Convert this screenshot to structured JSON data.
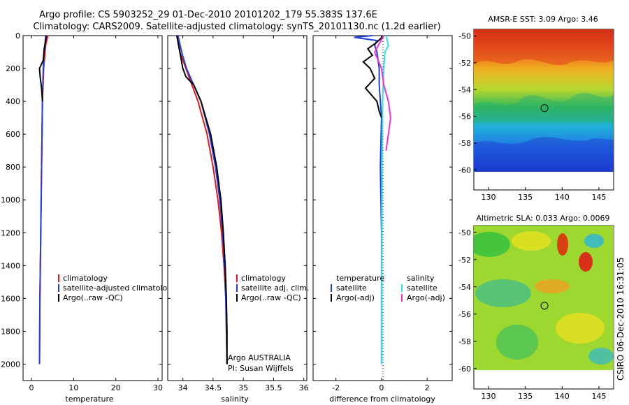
{
  "header": {
    "title_line1": "Argo profile: CS 5903252_29 01-Dec-2010 20101202_179 55.383S 137.6E",
    "title_line2": "Climatology: CARS2009. Satellite-adjusted climatology: synTS_20101130.nc (1.2d earlier)"
  },
  "stamp": "CSIRO 06-Dec-2010 16:31:05",
  "colors": {
    "climatology": "#e41a1c",
    "satellite": "#1f3fe0",
    "argo": "#000000",
    "sat_salinity": "#2ee0f0",
    "argo_adj_salinity": "#f030d0"
  },
  "chart_data": [
    {
      "type": "line",
      "name": "temperature-panel",
      "xlabel": "temperature",
      "ylabel": "",
      "xlim": [
        -2,
        31
      ],
      "ylim": [
        2100,
        0
      ],
      "xticks": [
        0,
        10,
        20,
        30
      ],
      "xtick_labels": [
        "0",
        "10",
        "20",
        "30"
      ],
      "yticks": [
        0,
        200,
        400,
        600,
        800,
        1000,
        1200,
        1400,
        1600,
        1800,
        2000
      ],
      "ytick_labels": [
        "0",
        "200",
        "400",
        "600",
        "800",
        "1000",
        "1200",
        "1400",
        "1600",
        "1800",
        "2000"
      ],
      "legend": [
        "climatology",
        "satellite-adjusted climatolo",
        "Argo(..raw -QC)"
      ],
      "series": [
        {
          "name": "climatology",
          "color": "#e41a1c",
          "y": [
            0,
            20,
            50,
            100,
            200,
            400,
            800,
            1200,
            1600,
            2000
          ],
          "x": [
            3.9,
            3.7,
            3.4,
            3.2,
            2.9,
            2.6,
            2.4,
            2.2,
            2.0,
            1.9
          ]
        },
        {
          "name": "satellite-adjusted climatology",
          "color": "#1f3fe0",
          "y": [
            0,
            20,
            50,
            100,
            200,
            400,
            800,
            1200,
            1600,
            2000
          ],
          "x": [
            3.4,
            3.3,
            3.2,
            3.0,
            2.8,
            2.6,
            2.4,
            2.2,
            2.0,
            1.9
          ]
        },
        {
          "name": "Argo(..raw -QC)",
          "color": "#000000",
          "y": [
            0,
            40,
            80,
            150,
            200,
            260,
            320,
            400
          ],
          "x": [
            3.5,
            3.3,
            3.0,
            2.8,
            1.9,
            2.1,
            2.4,
            2.6
          ]
        }
      ]
    },
    {
      "type": "line",
      "name": "salinity-panel",
      "xlabel": "salinity",
      "ylabel": "",
      "xlim": [
        33.75,
        36.05
      ],
      "ylim": [
        2100,
        0
      ],
      "xticks": [
        34,
        34.5,
        35,
        35.5,
        36
      ],
      "xtick_labels": [
        "34",
        "34.5",
        "35",
        "35.5",
        "36"
      ],
      "legend": [
        "climatology",
        "satellite adj. clim.",
        "Argo(..raw -QC)"
      ],
      "annotations": [
        "Argo AUSTRALIA",
        "PI: Susan Wijffels"
      ],
      "series": [
        {
          "name": "climatology",
          "color": "#e41a1c",
          "y": [
            0,
            100,
            200,
            300,
            400,
            600,
            800,
            1000,
            1200,
            1400,
            1600,
            2000
          ],
          "x": [
            33.9,
            33.95,
            34.05,
            34.15,
            34.25,
            34.4,
            34.5,
            34.58,
            34.64,
            34.68,
            34.71,
            34.73
          ]
        },
        {
          "name": "satellite adj. clim.",
          "color": "#1f3fe0",
          "y": [
            0,
            100,
            200,
            300,
            400,
            600,
            800,
            1000,
            1200,
            1400,
            1600,
            2000
          ],
          "x": [
            33.92,
            33.98,
            34.06,
            34.18,
            34.3,
            34.44,
            34.54,
            34.61,
            34.66,
            34.69,
            34.71,
            34.73
          ]
        },
        {
          "name": "Argo(..raw -QC)",
          "color": "#000000",
          "y": [
            0,
            100,
            200,
            250,
            300,
            400,
            600,
            800,
            1000,
            1200,
            1400,
            1600,
            1800,
            2000
          ],
          "x": [
            33.9,
            33.95,
            34.0,
            34.05,
            34.18,
            34.3,
            34.46,
            34.56,
            34.63,
            34.67,
            34.7,
            34.72,
            34.73,
            34.73
          ]
        }
      ]
    },
    {
      "type": "line",
      "name": "difference-panel",
      "xlabel": "difference from climatology",
      "ylabel": "",
      "xlim": [
        -3,
        3.1
      ],
      "ylim": [
        2100,
        0
      ],
      "xticks": [
        -2,
        0,
        2
      ],
      "xtick_labels": [
        "-2",
        "0",
        "2"
      ],
      "legend_headers": [
        "temperature",
        "salinity"
      ],
      "legend": [
        "satellite",
        "Argo(-adj)",
        "satellite",
        "Argo(-adj)"
      ],
      "series": [
        {
          "name": "temperature satellite",
          "color": "#1f3fe0",
          "y": [
            0,
            10,
            30,
            60,
            100,
            200,
            300,
            500,
            800,
            1200,
            1600,
            2000
          ],
          "x": [
            -0.4,
            -1.2,
            -0.2,
            -0.3,
            -0.2,
            -0.1,
            -0.1,
            0.0,
            -0.05,
            0.0,
            0.0,
            0.0
          ]
        },
        {
          "name": "temperature Argo(-adj)",
          "color": "#000000",
          "y": [
            0,
            40,
            80,
            120,
            160,
            200,
            260,
            320,
            400,
            460,
            500
          ],
          "x": [
            0.1,
            -0.2,
            -0.6,
            -0.4,
            -0.8,
            -0.5,
            -0.3,
            -0.7,
            -0.2,
            -0.1,
            0.0
          ]
        },
        {
          "name": "salinity satellite",
          "color": "#2ee0f0",
          "y": [
            0,
            60,
            100,
            200,
            400,
            800,
            1200,
            1600,
            2000
          ],
          "x": [
            0.2,
            0.3,
            0.15,
            0.1,
            0.05,
            0.02,
            0.01,
            0.0,
            0.0
          ]
        },
        {
          "name": "salinity Argo(-adj)",
          "color": "#f030d0",
          "y": [
            0,
            100,
            200,
            300,
            400,
            500,
            600,
            700
          ],
          "x": [
            0.1,
            -0.3,
            0.0,
            0.1,
            0.3,
            0.4,
            0.3,
            0.2
          ]
        }
      ]
    },
    {
      "type": "heatmap",
      "name": "sst-map",
      "title": "AMSR-E SST: 3.09 Argo: 3.46",
      "xlim": [
        128,
        147
      ],
      "ylim": [
        -61.5,
        -49.5
      ],
      "xticks": [
        130,
        135,
        140,
        145
      ],
      "xtick_labels": [
        "130",
        "135",
        "140",
        "145"
      ],
      "yticks": [
        -50,
        -52,
        -54,
        -56,
        -58,
        -60
      ],
      "ytick_labels": [
        "-50",
        "-52",
        "-54",
        "-56",
        "-58",
        "-60"
      ],
      "marker": {
        "lon": 137.6,
        "lat": -55.383
      }
    },
    {
      "type": "heatmap",
      "name": "sla-map",
      "title": "Altimetric SLA: 0.033 Argo: 0.0069",
      "xlim": [
        128,
        147
      ],
      "ylim": [
        -61.5,
        -49.5
      ],
      "xticks": [
        130,
        135,
        140,
        145
      ],
      "xtick_labels": [
        "130",
        "135",
        "140",
        "145"
      ],
      "yticks": [
        -50,
        -52,
        -54,
        -56,
        -58,
        -60
      ],
      "ytick_labels": [
        "-50",
        "-52",
        "-54",
        "-56",
        "-58",
        "-60"
      ],
      "marker": {
        "lon": 137.6,
        "lat": -55.383
      }
    }
  ]
}
